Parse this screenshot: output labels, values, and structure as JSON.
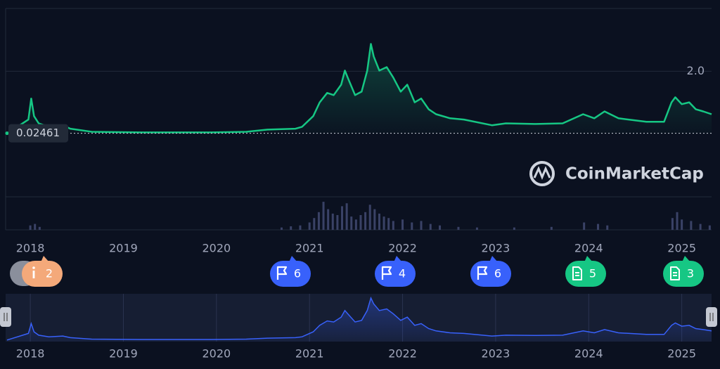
{
  "chart_data": {
    "type": "line",
    "watermark": "CoinMarketCap",
    "reference_value": 0.02461,
    "xlim": [
      2017.75,
      2025.32
    ],
    "xticks": [
      2018,
      2019,
      2020,
      2021,
      2022,
      2023,
      2024,
      2025
    ],
    "ylim": [
      -2,
      4
    ],
    "yticks": [
      {
        "value": 2,
        "label": "2.0"
      }
    ],
    "series": [
      {
        "color": "#16c784",
        "x": [
          2017.75,
          2017.98,
          2018.01,
          2018.04,
          2018.09,
          2018.2,
          2018.35,
          2018.43,
          2018.66,
          2019.19,
          2019.94,
          2020.32,
          2020.55,
          2020.85,
          2020.92,
          2021.04,
          2021.11,
          2021.19,
          2021.26,
          2021.34,
          2021.38,
          2021.41,
          2021.49,
          2021.56,
          2021.62,
          2021.66,
          2021.69,
          2021.75,
          2021.83,
          2021.9,
          2021.98,
          2022.05,
          2022.13,
          2022.2,
          2022.28,
          2022.36,
          2022.51,
          2022.66,
          2022.96,
          2023.11,
          2023.42,
          2023.72,
          2023.94,
          2024.06,
          2024.17,
          2024.32,
          2024.62,
          2024.81,
          2024.89,
          2024.93,
          2025.0,
          2025.08,
          2025.15,
          2025.23,
          2025.32
        ],
        "values": [
          0.01,
          0.46,
          1.13,
          0.57,
          0.34,
          0.23,
          0.28,
          0.17,
          0.07,
          0.05,
          0.05,
          0.07,
          0.14,
          0.17,
          0.23,
          0.57,
          1.01,
          1.31,
          1.24,
          1.57,
          2.02,
          1.8,
          1.24,
          1.35,
          2.02,
          2.87,
          2.47,
          2.02,
          2.13,
          1.8,
          1.35,
          1.57,
          1.01,
          1.13,
          0.79,
          0.63,
          0.5,
          0.46,
          0.28,
          0.34,
          0.32,
          0.34,
          0.63,
          0.5,
          0.72,
          0.5,
          0.39,
          0.39,
          1.01,
          1.17,
          0.95,
          1.01,
          0.79,
          0.72,
          0.63
        ]
      }
    ],
    "volume": {
      "color": "#3a4266",
      "ylim": [
        0,
        100
      ],
      "x": [
        2018.0,
        2018.05,
        2018.1,
        2020.7,
        2020.8,
        2020.9,
        2021.0,
        2021.05,
        2021.1,
        2021.15,
        2021.2,
        2021.25,
        2021.3,
        2021.35,
        2021.4,
        2021.45,
        2021.5,
        2021.55,
        2021.6,
        2021.65,
        2021.7,
        2021.75,
        2021.8,
        2021.85,
        2021.9,
        2022.0,
        2022.1,
        2022.2,
        2022.3,
        2022.4,
        2022.6,
        2022.8,
        2023.2,
        2023.6,
        2023.95,
        2024.1,
        2024.2,
        2024.9,
        2024.95,
        2025.0,
        2025.1,
        2025.2,
        2025.3
      ],
      "values": [
        15,
        20,
        10,
        8,
        12,
        15,
        25,
        40,
        60,
        95,
        70,
        55,
        50,
        80,
        90,
        45,
        35,
        50,
        60,
        85,
        70,
        55,
        45,
        40,
        30,
        35,
        25,
        30,
        20,
        15,
        10,
        8,
        8,
        10,
        25,
        20,
        15,
        40,
        60,
        35,
        30,
        20,
        15
      ]
    },
    "events": [
      2,
      6,
      4,
      6,
      5,
      3
    ],
    "navigator_color": "#3861fb"
  }
}
